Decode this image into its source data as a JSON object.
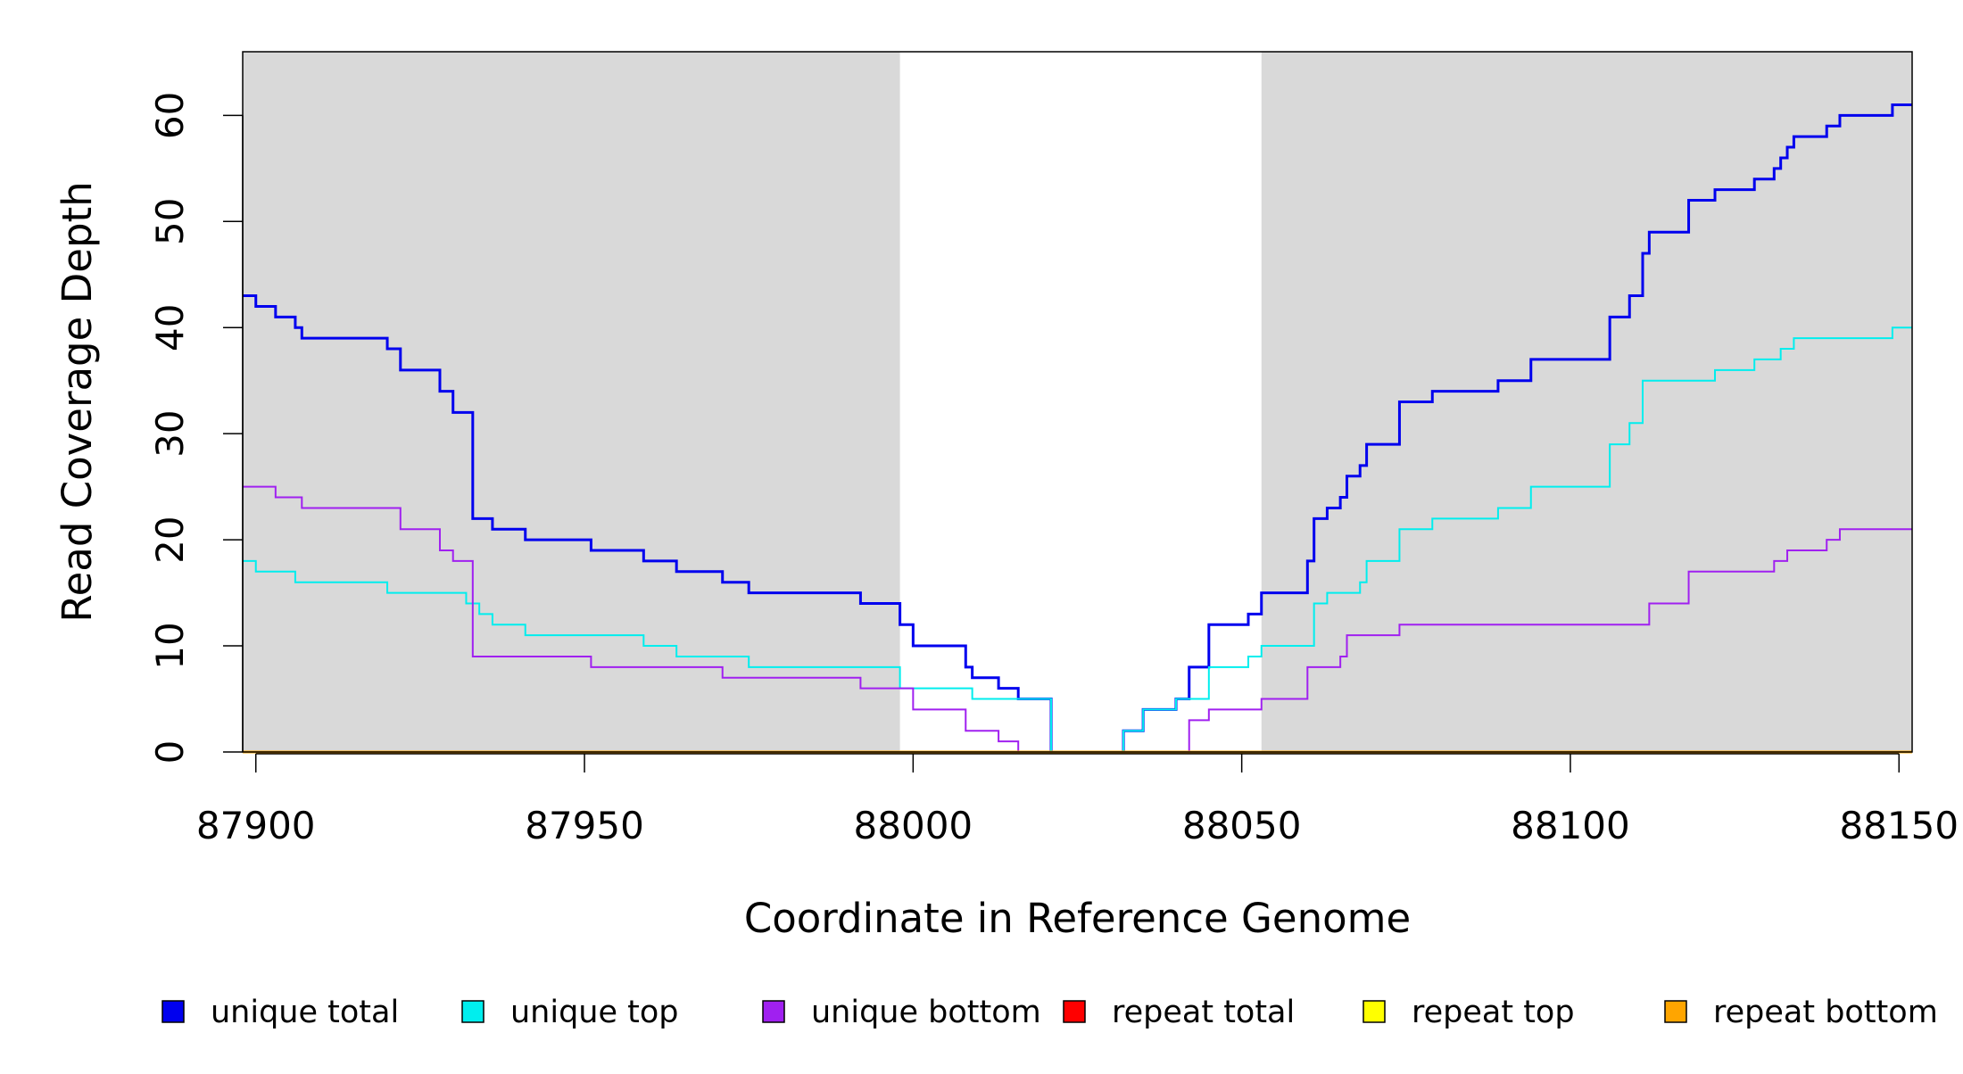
{
  "chart_data": {
    "type": "line",
    "title": "",
    "xlabel": "Coordinate in Reference Genome",
    "ylabel": "Read Coverage Depth",
    "xlim": [
      87898,
      88152
    ],
    "ylim": [
      0,
      66
    ],
    "x_ticks": [
      87900,
      87950,
      88000,
      88050,
      88100,
      88150
    ],
    "y_ticks": [
      0,
      10,
      20,
      30,
      40,
      50,
      60
    ],
    "grid": false,
    "shaded_regions": [
      {
        "x_start": 87898,
        "x_end": 87998,
        "color": "#d9d9d9"
      },
      {
        "x_start": 88053,
        "x_end": 88152,
        "color": "#d9d9d9"
      }
    ],
    "legend_position": "bottom",
    "series": [
      {
        "name": "unique total",
        "color": "#0000ee",
        "width": 3,
        "steps": [
          [
            87898,
            43
          ],
          [
            87900,
            42
          ],
          [
            87903,
            41
          ],
          [
            87906,
            40
          ],
          [
            87907,
            39
          ],
          [
            87920,
            38
          ],
          [
            87922,
            36
          ],
          [
            87928,
            34
          ],
          [
            87930,
            32
          ],
          [
            87933,
            22
          ],
          [
            87936,
            21
          ],
          [
            87941,
            20
          ],
          [
            87951,
            19
          ],
          [
            87959,
            18
          ],
          [
            87964,
            17
          ],
          [
            87971,
            16
          ],
          [
            87975,
            15
          ],
          [
            87992,
            14
          ],
          [
            87998,
            12
          ],
          [
            88000,
            10
          ],
          [
            88008,
            8
          ],
          [
            88009,
            7
          ],
          [
            88013,
            6
          ],
          [
            88016,
            5
          ],
          [
            88021,
            0
          ],
          [
            88032,
            2
          ],
          [
            88035,
            4
          ],
          [
            88040,
            5
          ],
          [
            88042,
            8
          ],
          [
            88045,
            12
          ],
          [
            88051,
            13
          ],
          [
            88053,
            15
          ],
          [
            88060,
            18
          ],
          [
            88061,
            22
          ],
          [
            88063,
            23
          ],
          [
            88065,
            24
          ],
          [
            88066,
            26
          ],
          [
            88068,
            27
          ],
          [
            88069,
            29
          ],
          [
            88074,
            33
          ],
          [
            88079,
            34
          ],
          [
            88089,
            35
          ],
          [
            88094,
            37
          ],
          [
            88106,
            41
          ],
          [
            88109,
            43
          ],
          [
            88111,
            47
          ],
          [
            88112,
            49
          ],
          [
            88118,
            52
          ],
          [
            88122,
            53
          ],
          [
            88128,
            54
          ],
          [
            88131,
            55
          ],
          [
            88132,
            56
          ],
          [
            88133,
            57
          ],
          [
            88134,
            58
          ],
          [
            88139,
            59
          ],
          [
            88141,
            60
          ],
          [
            88149,
            61
          ],
          [
            88152,
            61
          ]
        ]
      },
      {
        "name": "unique top",
        "color": "#00eeee",
        "width": 2,
        "steps": [
          [
            87898,
            18
          ],
          [
            87900,
            17
          ],
          [
            87906,
            16
          ],
          [
            87920,
            15
          ],
          [
            87932,
            14
          ],
          [
            87934,
            13
          ],
          [
            87936,
            12
          ],
          [
            87941,
            11
          ],
          [
            87959,
            10
          ],
          [
            87964,
            9
          ],
          [
            87975,
            8
          ],
          [
            87998,
            6
          ],
          [
            88009,
            5
          ],
          [
            88021,
            0
          ],
          [
            88032,
            2
          ],
          [
            88035,
            4
          ],
          [
            88040,
            5
          ],
          [
            88045,
            8
          ],
          [
            88051,
            9
          ],
          [
            88053,
            10
          ],
          [
            88061,
            14
          ],
          [
            88063,
            15
          ],
          [
            88068,
            16
          ],
          [
            88069,
            18
          ],
          [
            88074,
            21
          ],
          [
            88079,
            22
          ],
          [
            88089,
            23
          ],
          [
            88094,
            25
          ],
          [
            88106,
            29
          ],
          [
            88109,
            31
          ],
          [
            88111,
            35
          ],
          [
            88122,
            36
          ],
          [
            88128,
            37
          ],
          [
            88132,
            38
          ],
          [
            88134,
            39
          ],
          [
            88149,
            40
          ],
          [
            88152,
            40
          ]
        ]
      },
      {
        "name": "unique bottom",
        "color": "#a020f0",
        "width": 2,
        "steps": [
          [
            87898,
            25
          ],
          [
            87903,
            24
          ],
          [
            87907,
            23
          ],
          [
            87922,
            21
          ],
          [
            87928,
            19
          ],
          [
            87930,
            18
          ],
          [
            87933,
            9
          ],
          [
            87951,
            8
          ],
          [
            87971,
            7
          ],
          [
            87992,
            6
          ],
          [
            88000,
            4
          ],
          [
            88008,
            2
          ],
          [
            88013,
            1
          ],
          [
            88016,
            0
          ],
          [
            88042,
            3
          ],
          [
            88045,
            4
          ],
          [
            88053,
            5
          ],
          [
            88060,
            8
          ],
          [
            88065,
            9
          ],
          [
            88066,
            11
          ],
          [
            88074,
            12
          ],
          [
            88112,
            14
          ],
          [
            88118,
            17
          ],
          [
            88131,
            18
          ],
          [
            88133,
            19
          ],
          [
            88139,
            20
          ],
          [
            88141,
            21
          ],
          [
            88152,
            21
          ]
        ]
      },
      {
        "name": "repeat total",
        "color": "#ff0000",
        "width": 2,
        "steps": [
          [
            87898,
            0
          ],
          [
            88152,
            0
          ]
        ]
      },
      {
        "name": "repeat top",
        "color": "#ffff00",
        "width": 2,
        "steps": [
          [
            87898,
            0
          ],
          [
            88152,
            0
          ]
        ]
      },
      {
        "name": "repeat bottom",
        "color": "#ffa500",
        "width": 3,
        "steps": [
          [
            87898,
            0
          ],
          [
            88152,
            0
          ]
        ]
      }
    ]
  }
}
